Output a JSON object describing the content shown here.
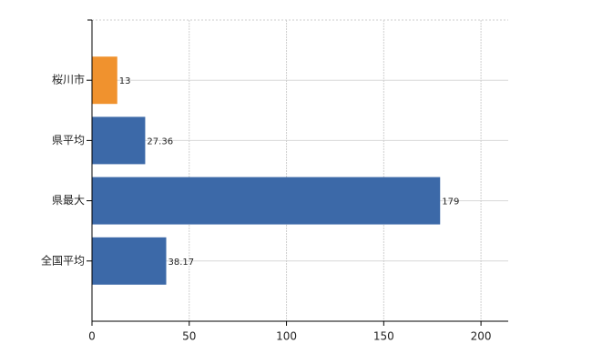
{
  "chart_data": {
    "type": "hbar",
    "categories": [
      "桜川市",
      "県平均",
      "県最大",
      "全国平均"
    ],
    "values": [
      13,
      27.36,
      179,
      38.17
    ],
    "colors": [
      "#f0922e",
      "#3c69a8",
      "#3c69a8",
      "#3c69a8"
    ],
    "xlim": [
      0,
      214
    ],
    "xticks": [
      0,
      50,
      100,
      150,
      200
    ],
    "grid": true
  }
}
